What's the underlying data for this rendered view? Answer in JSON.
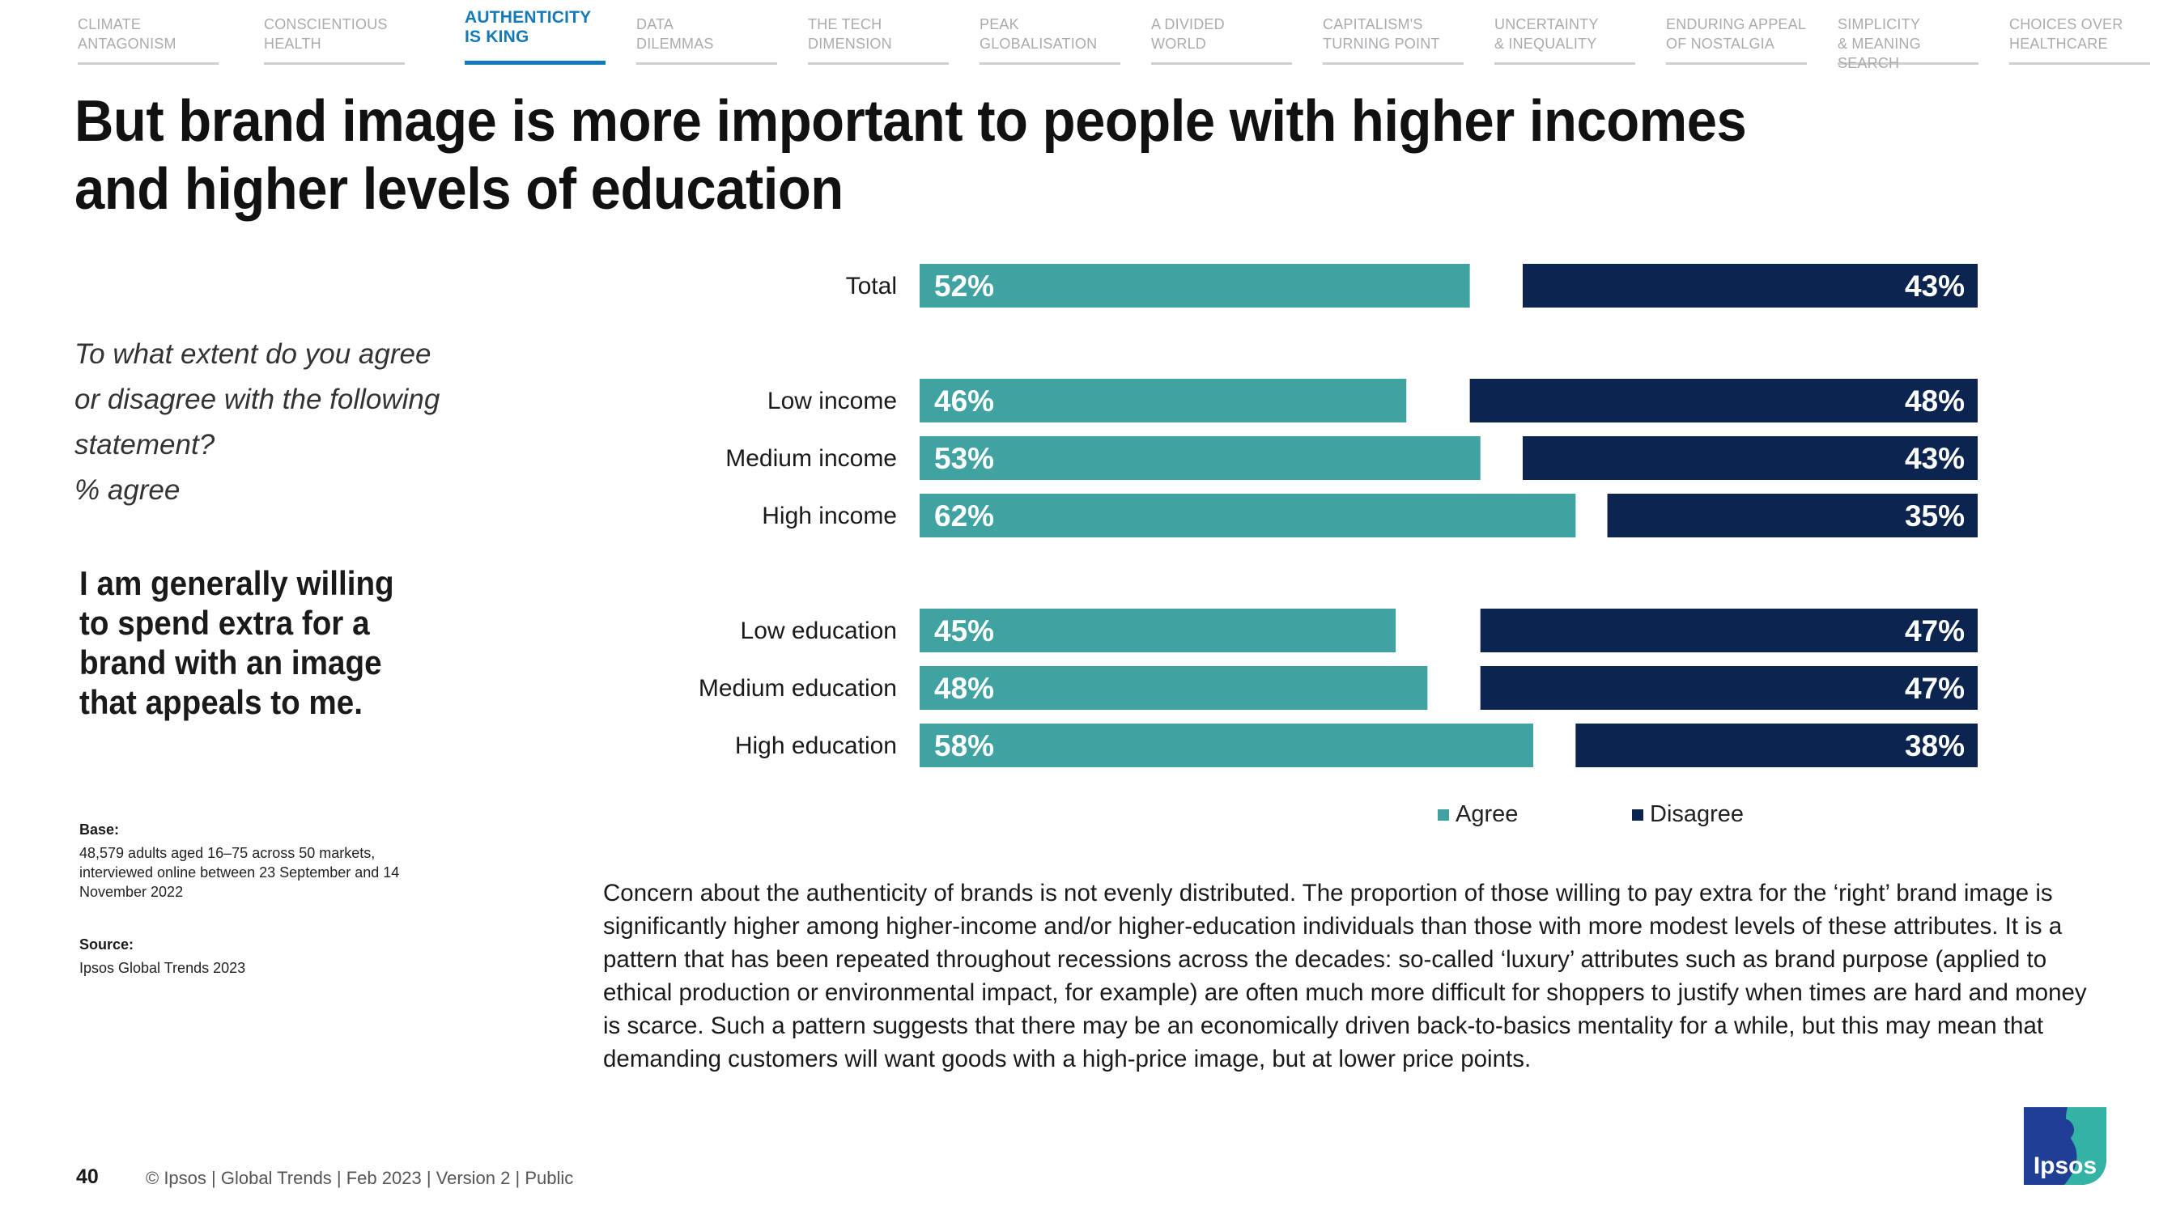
{
  "nav": {
    "tabs": [
      {
        "label": "CLIMATE\nANTAGONISM",
        "active": false
      },
      {
        "label": "CONSCIENTIOUS\nHEALTH",
        "active": false
      },
      {
        "label": "AUTHENTICITY\nIS KING",
        "active": true
      },
      {
        "label": "DATA\nDILEMMAS",
        "active": false
      },
      {
        "label": "THE TECH\nDIMENSION",
        "active": false
      },
      {
        "label": "PEAK\nGLOBALISATION",
        "active": false
      },
      {
        "label": "A DIVIDED\nWORLD",
        "active": false
      },
      {
        "label": "CAPITALISM'S\nTURNING POINT",
        "active": false
      },
      {
        "label": "UNCERTAINTY\n& INEQUALITY",
        "active": false
      },
      {
        "label": "ENDURING APPEAL\nOF NOSTALGIA",
        "active": false
      },
      {
        "label": "SIMPLICITY\n& MEANING SEARCH",
        "active": false
      },
      {
        "label": "CHOICES OVER\nHEALTHCARE",
        "active": false
      }
    ]
  },
  "title": "But brand image is more important to people with higher incomes and higher levels of education",
  "question": "To what extent do you agree or disagree with the following statement?\n% agree",
  "statement": "I am generally willing to spend extra for a brand with an image that appeals to me.",
  "base": {
    "label": "Base:",
    "text": "48,579 adults aged 16–75 across 50 markets, interviewed online between 23 September and 14 November 2022"
  },
  "source": {
    "label": "Source:",
    "text": "Ipsos Global Trends 2023"
  },
  "chart_data": {
    "type": "bar",
    "orientation": "horizontal",
    "stacked": false,
    "categories": [
      "Total",
      "Low income",
      "Medium income",
      "High income",
      "Low education",
      "Medium education",
      "High education"
    ],
    "groups": [
      [
        "Total"
      ],
      [
        "Low income",
        "Medium income",
        "High income"
      ],
      [
        "Low education",
        "Medium education",
        "High education"
      ]
    ],
    "series": [
      {
        "name": "Agree",
        "values": [
          52,
          46,
          53,
          62,
          45,
          48,
          58
        ],
        "color": "#40a2a1"
      },
      {
        "name": "Disagree",
        "values": [
          43,
          48,
          43,
          35,
          47,
          47,
          38
        ],
        "color": "#0b2550"
      }
    ],
    "value_suffix": "%",
    "xlim": [
      0,
      100
    ],
    "legend_position": "bottom-center",
    "grid": false
  },
  "body_text": "Concern about the authenticity of brands is not evenly distributed. The proportion of those willing to pay extra for the ‘right’ brand image is significantly higher among higher-income and/or higher-education individuals than those with more modest levels of these attributes. It is a pattern that has been repeated throughout recessions across the decades: so-called ‘luxury’ attributes such as brand purpose (applied to ethical production or environmental impact, for example) are often much more difficult for shoppers to justify when times are hard and money is scarce. Such a pattern suggests that there may be an economically driven back-to-basics mentality for a while, but this may mean that demanding customers will want goods with a high-price image, but at lower price points.",
  "footer": {
    "page_number": "40",
    "text": "© Ipsos | Global Trends | Feb 2023 | Version 2 | Public"
  },
  "logo": {
    "text": "Ipsos",
    "icon": "ipsos-logo-icon",
    "colors": {
      "blue": "#1f3f96",
      "teal": "#33b3a6"
    }
  }
}
